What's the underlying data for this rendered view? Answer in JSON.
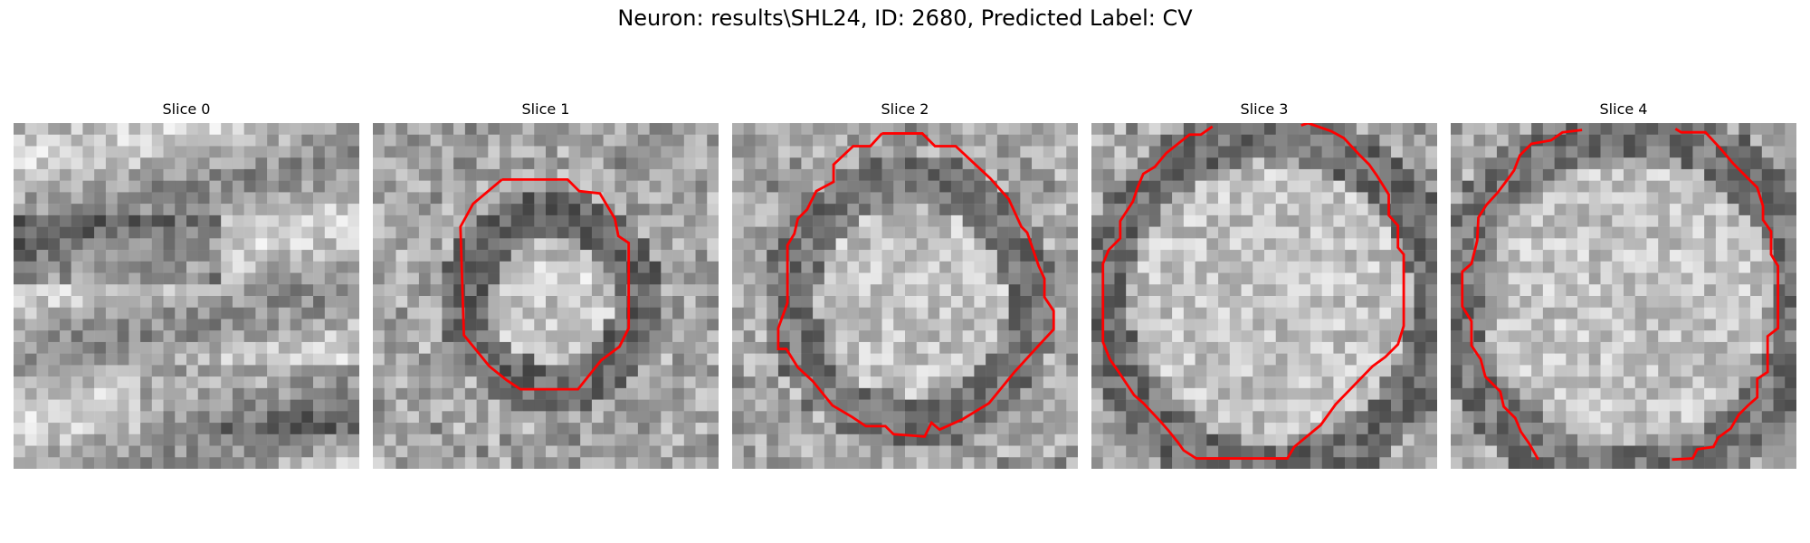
{
  "figure": {
    "title": "Neuron: results\\SHL24, ID: 2680, Predicted Label: CV",
    "contour_color": "#ff0000"
  },
  "panels": [
    {
      "title": "Slice 0",
      "has_contour": false
    },
    {
      "title": "Slice 1",
      "has_contour": true
    },
    {
      "title": "Slice 2",
      "has_contour": true
    },
    {
      "title": "Slice 3",
      "has_contour": true
    },
    {
      "title": "Slice 4",
      "has_contour": true
    }
  ]
}
